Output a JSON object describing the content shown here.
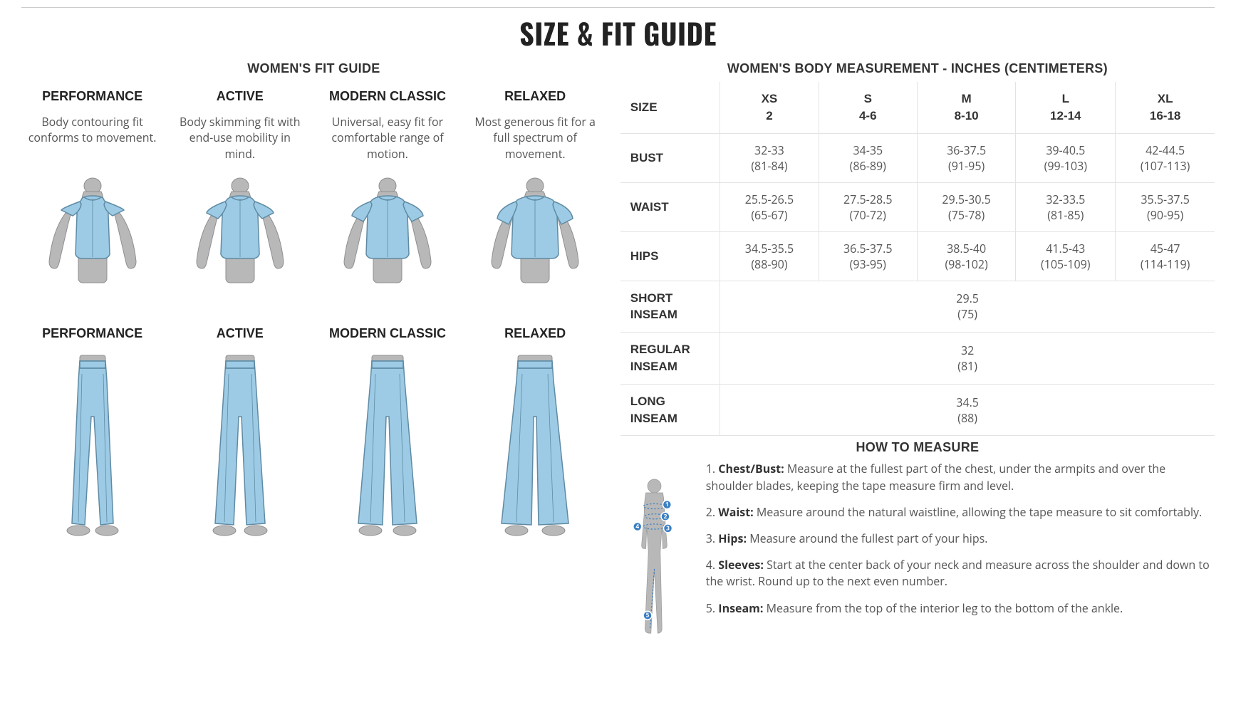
{
  "page_title": "SIZE & FIT GUIDE",
  "colors": {
    "shirt_fill": "#9dcbe5",
    "shirt_stroke": "#5f8aa3",
    "body_fill": "#b8b8b8",
    "body_stroke": "#8f8f8f",
    "marker": "#3b7fc4"
  },
  "fit_guide": {
    "title": "WOMEN'S FIT GUIDE",
    "fits": [
      {
        "name": "PERFORMANCE",
        "desc": "Body contouring fit conforms to movement."
      },
      {
        "name": "ACTIVE",
        "desc": "Body skimming fit with end-use mobility in mind."
      },
      {
        "name": "MODERN CLASSIC",
        "desc": "Universal, easy fit for comfortable range of motion."
      },
      {
        "name": "RELAXED",
        "desc": "Most generous fit for a full spectrum of movement."
      }
    ]
  },
  "size_table": {
    "title": "WOMEN'S BODY MEASUREMENT - INCHES (CENTIMETERS)",
    "size_label": "SIZE",
    "columns": [
      {
        "label": "XS",
        "sub": "2"
      },
      {
        "label": "S",
        "sub": "4-6"
      },
      {
        "label": "M",
        "sub": "8-10"
      },
      {
        "label": "L",
        "sub": "12-14"
      },
      {
        "label": "XL",
        "sub": "16-18"
      }
    ],
    "rows": [
      {
        "label": "BUST",
        "cells": [
          {
            "v": "32-33",
            "cm": "(81-84)"
          },
          {
            "v": "34-35",
            "cm": "(86-89)"
          },
          {
            "v": "36-37.5",
            "cm": "(91-95)"
          },
          {
            "v": "39-40.5",
            "cm": "(99-103)"
          },
          {
            "v": "42-44.5",
            "cm": "(107-113)"
          }
        ]
      },
      {
        "label": "WAIST",
        "cells": [
          {
            "v": "25.5-26.5",
            "cm": "(65-67)"
          },
          {
            "v": "27.5-28.5",
            "cm": "(70-72)"
          },
          {
            "v": "29.5-30.5",
            "cm": "(75-78)"
          },
          {
            "v": "32-33.5",
            "cm": "(81-85)"
          },
          {
            "v": "35.5-37.5",
            "cm": "(90-95)"
          }
        ]
      },
      {
        "label": "HIPS",
        "cells": [
          {
            "v": "34.5-35.5",
            "cm": "(88-90)"
          },
          {
            "v": "36.5-37.5",
            "cm": "(93-95)"
          },
          {
            "v": "38.5-40",
            "cm": "(98-102)"
          },
          {
            "v": "41.5-43",
            "cm": "(105-109)"
          },
          {
            "v": "45-47",
            "cm": "(114-119)"
          }
        ]
      }
    ],
    "span_rows": [
      {
        "label": "SHORT INSEAM",
        "v": "29.5",
        "cm": "(75)"
      },
      {
        "label": "REGULAR INSEAM",
        "v": "32",
        "cm": "(81)"
      },
      {
        "label": "LONG INSEAM",
        "v": "34.5",
        "cm": "(88)"
      }
    ]
  },
  "howto": {
    "title": "HOW TO MEASURE",
    "items": [
      {
        "n": "1",
        "label": "Chest/Bust:",
        "text": "Measure at the fullest part of the chest, under the armpits and over the shoulder blades, keeping the tape measure firm and level."
      },
      {
        "n": "2",
        "label": "Waist:",
        "text": "Measure around the natural waistline, allowing the tape measure to sit comfortably."
      },
      {
        "n": "3",
        "label": "Hips:",
        "text": "Measure around the fullest part of your hips."
      },
      {
        "n": "4",
        "label": "Sleeves:",
        "text": "Start at the center back of your neck and measure across the shoulder and down to the wrist. Round up to the next even number."
      },
      {
        "n": "5",
        "label": "Inseam:",
        "text": "Measure from the top of the interior leg to the bottom of the ankle."
      }
    ]
  }
}
